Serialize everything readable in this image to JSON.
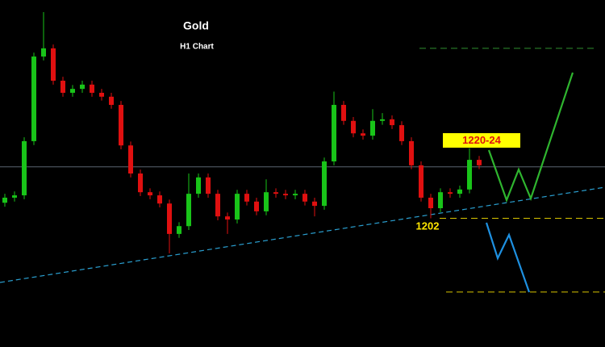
{
  "chart_data": {
    "type": "candlestick",
    "title": "Gold",
    "subtitle": "H1 Chart",
    "annotations": [
      "1220-24",
      "1202"
    ],
    "up_color": "#19c419",
    "down_color": "#e01010",
    "ylim": [
      1169,
      1258
    ],
    "open": [
      1206.0,
      1207.3,
      1207.9,
      1221.8,
      1243.5,
      1245.6,
      1237.3,
      1234.2,
      1235.2,
      1236.3,
      1234.2,
      1233.2,
      1231.1,
      1220.7,
      1213.5,
      1208.7,
      1207.9,
      1205.8,
      1198.0,
      1200.0,
      1208.3,
      1212.5,
      1208.3,
      1202.5,
      1201.7,
      1208.3,
      1206.3,
      1203.8,
      1208.7,
      1208.3,
      1207.9,
      1208.3,
      1206.3,
      1205.2,
      1216.6,
      1231.1,
      1227.0,
      1223.8,
      1223.2,
      1227.0,
      1227.4,
      1225.9,
      1221.8,
      1215.6,
      1207.3,
      1204.6,
      1208.7,
      1208.3,
      1209.4,
      1217.0
    ],
    "high": [
      1208.3,
      1208.9,
      1222.8,
      1244.5,
      1254.9,
      1246.6,
      1238.3,
      1236.2,
      1237.3,
      1237.3,
      1235.2,
      1234.2,
      1232.1,
      1221.7,
      1214.5,
      1209.7,
      1208.9,
      1206.8,
      1201.0,
      1213.5,
      1213.5,
      1213.5,
      1209.3,
      1203.5,
      1209.3,
      1209.3,
      1207.3,
      1212.0,
      1209.7,
      1209.3,
      1209.3,
      1209.3,
      1207.3,
      1217.6,
      1234.5,
      1232.1,
      1228.0,
      1224.8,
      1230.0,
      1229.0,
      1228.4,
      1226.9,
      1222.8,
      1216.6,
      1208.3,
      1209.7,
      1209.7,
      1210.4,
      1220.0,
      1218.0
    ],
    "low": [
      1205.0,
      1206.3,
      1206.9,
      1220.8,
      1242.5,
      1236.3,
      1233.2,
      1233.2,
      1234.2,
      1233.2,
      1232.2,
      1230.1,
      1219.7,
      1212.5,
      1207.7,
      1206.9,
      1204.8,
      1193.0,
      1197.0,
      1199.0,
      1207.3,
      1207.3,
      1201.5,
      1198.0,
      1200.7,
      1205.3,
      1202.8,
      1202.8,
      1207.3,
      1206.9,
      1206.9,
      1205.3,
      1202.5,
      1204.2,
      1215.6,
      1226.0,
      1222.8,
      1222.2,
      1222.2,
      1226.0,
      1224.9,
      1220.8,
      1214.6,
      1206.3,
      1202.0,
      1203.6,
      1207.3,
      1207.3,
      1208.4,
      1214.6
    ],
    "close": [
      1207.3,
      1207.9,
      1221.8,
      1243.5,
      1245.6,
      1237.3,
      1234.2,
      1235.2,
      1236.3,
      1234.2,
      1233.2,
      1231.1,
      1220.7,
      1213.5,
      1208.7,
      1207.9,
      1205.8,
      1198.0,
      1200.0,
      1208.3,
      1212.5,
      1208.3,
      1202.5,
      1201.7,
      1208.3,
      1206.3,
      1203.8,
      1208.7,
      1208.3,
      1207.9,
      1208.3,
      1206.3,
      1205.2,
      1216.6,
      1231.1,
      1227.0,
      1223.8,
      1223.2,
      1227.0,
      1227.4,
      1225.9,
      1221.8,
      1215.6,
      1207.3,
      1204.6,
      1208.7,
      1208.3,
      1209.4,
      1217.0,
      1215.6
    ],
    "levels": [
      {
        "value": 1215.2,
        "color": "#5a6470"
      },
      {
        "value": 1245.6,
        "color": "#2f8f2f"
      },
      {
        "value": 1202,
        "color": "#d8c400"
      },
      {
        "value": 1183.1,
        "color": "#d8c400"
      }
    ]
  }
}
